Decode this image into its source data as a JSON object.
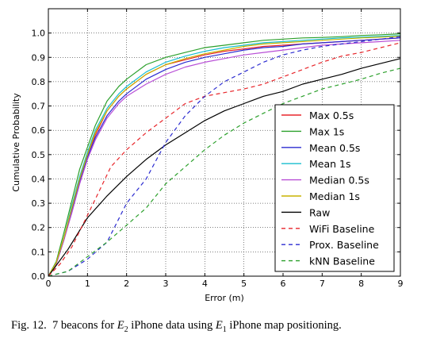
{
  "chart_data": {
    "type": "line",
    "title": "",
    "xlabel": "Error (m)",
    "ylabel": "Cumulative Probability",
    "xlim": [
      0,
      9
    ],
    "ylim": [
      0,
      1.0
    ],
    "xticks": [
      "0",
      "1",
      "2",
      "3",
      "4",
      "5",
      "6",
      "7",
      "8",
      "9"
    ],
    "yticks": [
      "0.0",
      "0.1",
      "0.2",
      "0.3",
      "0.4",
      "0.5",
      "0.6",
      "0.7",
      "0.8",
      "0.9",
      "1.0"
    ],
    "grid": true,
    "legend_position": "lower-right",
    "series": [
      {
        "name": "Max 0.5s",
        "color": "#e8262b",
        "dash": "solid",
        "x": [
          0,
          0.2,
          0.4,
          0.6,
          0.8,
          1.0,
          1.2,
          1.5,
          1.8,
          2.0,
          2.5,
          3.0,
          3.5,
          4.0,
          4.5,
          5.0,
          5.5,
          6.0,
          6.5,
          7.0,
          7.5,
          8.0,
          8.5,
          9.0
        ],
        "y": [
          0,
          0.05,
          0.15,
          0.27,
          0.4,
          0.5,
          0.58,
          0.68,
          0.74,
          0.77,
          0.83,
          0.87,
          0.89,
          0.91,
          0.925,
          0.935,
          0.945,
          0.95,
          0.955,
          0.96,
          0.965,
          0.97,
          0.975,
          0.98
        ]
      },
      {
        "name": "Max 1s",
        "color": "#2ca02c",
        "dash": "solid",
        "x": [
          0,
          0.2,
          0.4,
          0.6,
          0.8,
          1.0,
          1.2,
          1.5,
          1.8,
          2.0,
          2.5,
          3.0,
          3.5,
          4.0,
          4.5,
          5.0,
          5.5,
          6.0,
          6.5,
          7.0,
          7.5,
          8.0,
          8.5,
          9.0
        ],
        "y": [
          0,
          0.06,
          0.18,
          0.31,
          0.44,
          0.53,
          0.62,
          0.72,
          0.78,
          0.81,
          0.87,
          0.9,
          0.92,
          0.94,
          0.95,
          0.96,
          0.97,
          0.975,
          0.98,
          0.982,
          0.985,
          0.99,
          0.993,
          0.997
        ]
      },
      {
        "name": "Mean 0.5s",
        "color": "#2b2bd0",
        "dash": "solid",
        "x": [
          0,
          0.2,
          0.4,
          0.6,
          0.8,
          1.0,
          1.2,
          1.5,
          1.8,
          2.0,
          2.5,
          3.0,
          3.5,
          4.0,
          4.5,
          5.0,
          5.5,
          6.0,
          6.5,
          7.0,
          7.5,
          8.0,
          8.5,
          9.0
        ],
        "y": [
          0,
          0.05,
          0.15,
          0.27,
          0.39,
          0.49,
          0.57,
          0.66,
          0.72,
          0.75,
          0.81,
          0.85,
          0.88,
          0.9,
          0.915,
          0.93,
          0.94,
          0.945,
          0.955,
          0.96,
          0.965,
          0.97,
          0.975,
          0.98
        ]
      },
      {
        "name": "Mean 1s",
        "color": "#17becf",
        "dash": "solid",
        "x": [
          0,
          0.2,
          0.4,
          0.6,
          0.8,
          1.0,
          1.2,
          1.5,
          1.8,
          2.0,
          2.5,
          3.0,
          3.5,
          4.0,
          4.5,
          5.0,
          5.5,
          6.0,
          6.5,
          7.0,
          7.5,
          8.0,
          8.5,
          9.0
        ],
        "y": [
          0,
          0.055,
          0.16,
          0.29,
          0.41,
          0.51,
          0.6,
          0.69,
          0.75,
          0.78,
          0.84,
          0.88,
          0.905,
          0.925,
          0.94,
          0.95,
          0.96,
          0.965,
          0.97,
          0.975,
          0.98,
          0.983,
          0.986,
          0.99
        ]
      },
      {
        "name": "Median 0.5s",
        "color": "#b84fd6",
        "dash": "solid",
        "x": [
          0,
          0.2,
          0.4,
          0.6,
          0.8,
          1.0,
          1.2,
          1.5,
          1.8,
          2.0,
          2.5,
          3.0,
          3.5,
          4.0,
          4.5,
          5.0,
          5.5,
          6.0,
          6.5,
          7.0,
          7.5,
          8.0,
          8.5,
          9.0
        ],
        "y": [
          0,
          0.05,
          0.15,
          0.26,
          0.38,
          0.48,
          0.56,
          0.65,
          0.71,
          0.74,
          0.79,
          0.83,
          0.86,
          0.88,
          0.895,
          0.91,
          0.92,
          0.93,
          0.94,
          0.95,
          0.955,
          0.96,
          0.965,
          0.97
        ]
      },
      {
        "name": "Median 1s",
        "color": "#c8b400",
        "dash": "solid",
        "x": [
          0,
          0.2,
          0.4,
          0.6,
          0.8,
          1.0,
          1.2,
          1.5,
          1.8,
          2.0,
          2.5,
          3.0,
          3.5,
          4.0,
          4.5,
          5.0,
          5.5,
          6.0,
          6.5,
          7.0,
          7.5,
          8.0,
          8.5,
          9.0
        ],
        "y": [
          0,
          0.055,
          0.16,
          0.28,
          0.4,
          0.5,
          0.59,
          0.68,
          0.74,
          0.77,
          0.83,
          0.87,
          0.895,
          0.915,
          0.93,
          0.945,
          0.955,
          0.96,
          0.965,
          0.97,
          0.975,
          0.98,
          0.983,
          0.987
        ]
      },
      {
        "name": "Raw",
        "color": "#000000",
        "dash": "solid",
        "x": [
          0,
          0.5,
          1.0,
          1.5,
          2.0,
          2.5,
          3.0,
          3.5,
          4.0,
          4.5,
          5.0,
          5.5,
          6.0,
          6.5,
          7.0,
          7.5,
          8.0,
          8.5,
          9.0
        ],
        "y": [
          0,
          0.11,
          0.24,
          0.33,
          0.41,
          0.48,
          0.54,
          0.59,
          0.64,
          0.68,
          0.71,
          0.74,
          0.76,
          0.79,
          0.81,
          0.83,
          0.855,
          0.875,
          0.895
        ]
      },
      {
        "name": "WiFi Baseline",
        "color": "#e8262b",
        "dash": "dashed",
        "x": [
          0,
          0.3,
          0.6,
          1.0,
          1.3,
          1.6,
          2.0,
          2.5,
          3.0,
          3.5,
          4.0,
          4.5,
          5.0,
          5.5,
          6.0,
          6.5,
          7.0,
          7.5,
          8.0,
          8.5,
          9.0
        ],
        "y": [
          0,
          0.05,
          0.12,
          0.25,
          0.35,
          0.45,
          0.52,
          0.59,
          0.65,
          0.71,
          0.74,
          0.755,
          0.77,
          0.79,
          0.82,
          0.85,
          0.88,
          0.905,
          0.92,
          0.94,
          0.96
        ]
      },
      {
        "name": "Prox. Baseline",
        "color": "#2b2bd0",
        "dash": "dashed",
        "x": [
          0,
          0.5,
          1.0,
          1.5,
          2.0,
          2.5,
          3.0,
          3.5,
          4.0,
          4.5,
          5.0,
          5.5,
          6.0,
          6.5,
          7.0,
          7.5,
          8.0,
          8.5,
          9.0
        ],
        "y": [
          0,
          0.02,
          0.07,
          0.14,
          0.3,
          0.4,
          0.55,
          0.66,
          0.74,
          0.8,
          0.84,
          0.88,
          0.91,
          0.93,
          0.945,
          0.955,
          0.965,
          0.975,
          0.985
        ]
      },
      {
        "name": "kNN Baseline",
        "color": "#2ca02c",
        "dash": "dashed",
        "x": [
          0,
          0.5,
          1.0,
          1.5,
          2.0,
          2.5,
          3.0,
          3.5,
          4.0,
          4.5,
          5.0,
          5.5,
          6.0,
          6.5,
          7.0,
          7.5,
          8.0,
          8.5,
          9.0
        ],
        "y": [
          0,
          0.02,
          0.08,
          0.14,
          0.21,
          0.28,
          0.38,
          0.45,
          0.52,
          0.58,
          0.63,
          0.67,
          0.71,
          0.74,
          0.77,
          0.79,
          0.81,
          0.835,
          0.855
        ]
      }
    ]
  },
  "caption": {
    "prefix": "Fig. 12.",
    "text_a": "7 beacons for ",
    "e_main": "E",
    "e2_sub": "2",
    "text_b": " iPhone data using ",
    "e1_sub": "1",
    "text_c": " iPhone map positioning."
  }
}
